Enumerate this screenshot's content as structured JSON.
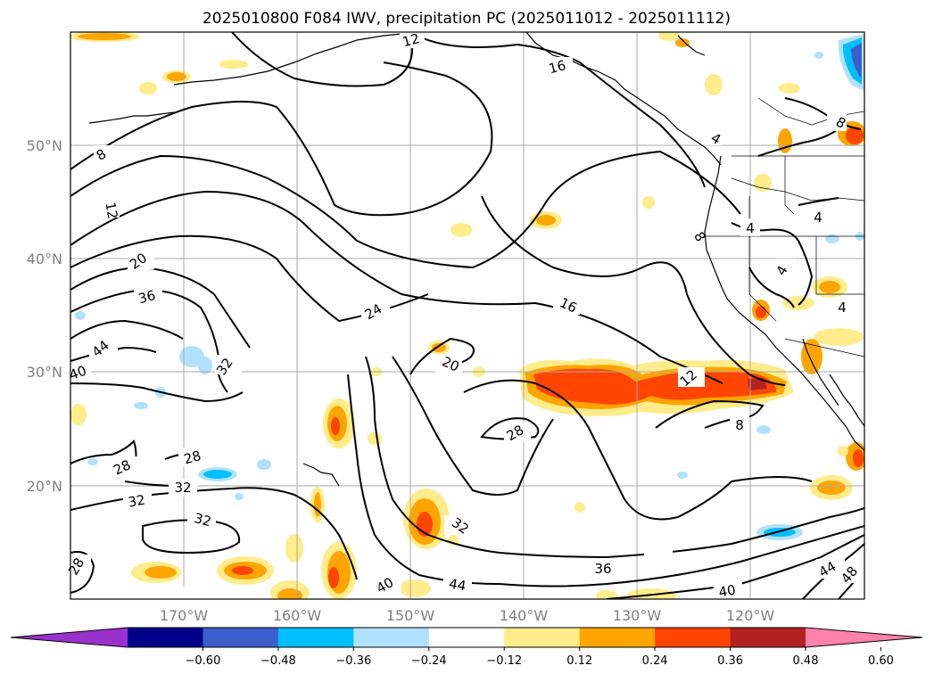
{
  "title": "2025010800 F084 IWV, precipitation PC (2025011012 - 2025011112)",
  "lat_labels": [
    "50°N",
    "40°N",
    "30°N",
    "20°N"
  ],
  "lon_labels": [
    "170°W",
    "160°W",
    "150°W",
    "140°W",
    "130°W",
    "120°W"
  ],
  "contour_labels": [
    "12",
    "16",
    "8",
    "4",
    "8",
    "12",
    "20",
    "36",
    "44",
    "40",
    "32",
    "24",
    "16",
    "20",
    "28",
    "28",
    "28",
    "32",
    "32",
    "32",
    "32",
    "28",
    "36",
    "40",
    "44",
    "44",
    "48",
    "12",
    "8",
    "4",
    "4",
    "4",
    "4",
    "8",
    "40"
  ],
  "colorbar": {
    "ticks": [
      "−0.60",
      "−0.48",
      "−0.36",
      "−0.24",
      "−0.12",
      "0.12",
      "0.24",
      "0.36",
      "0.48",
      "0.60"
    ],
    "colors": [
      "#9932cc",
      "#00008b",
      "#3a5fcd",
      "#00bfff",
      "#b0e2ff",
      "#ffffff",
      "#ffec8b",
      "#ffa500",
      "#ff4500",
      "#b22222",
      "#ff82ab"
    ]
  },
  "colors": {
    "land_line": "#000000",
    "grid": "#aaaaaa",
    "precip_light": "#ffec8b",
    "precip_mid": "#ffa500",
    "precip_heavy": "#ff4500",
    "precip_max": "#b22222",
    "neg_light": "#b0e2ff",
    "neg_mid": "#00bfff",
    "neg_strong": "#3a5fcd"
  }
}
